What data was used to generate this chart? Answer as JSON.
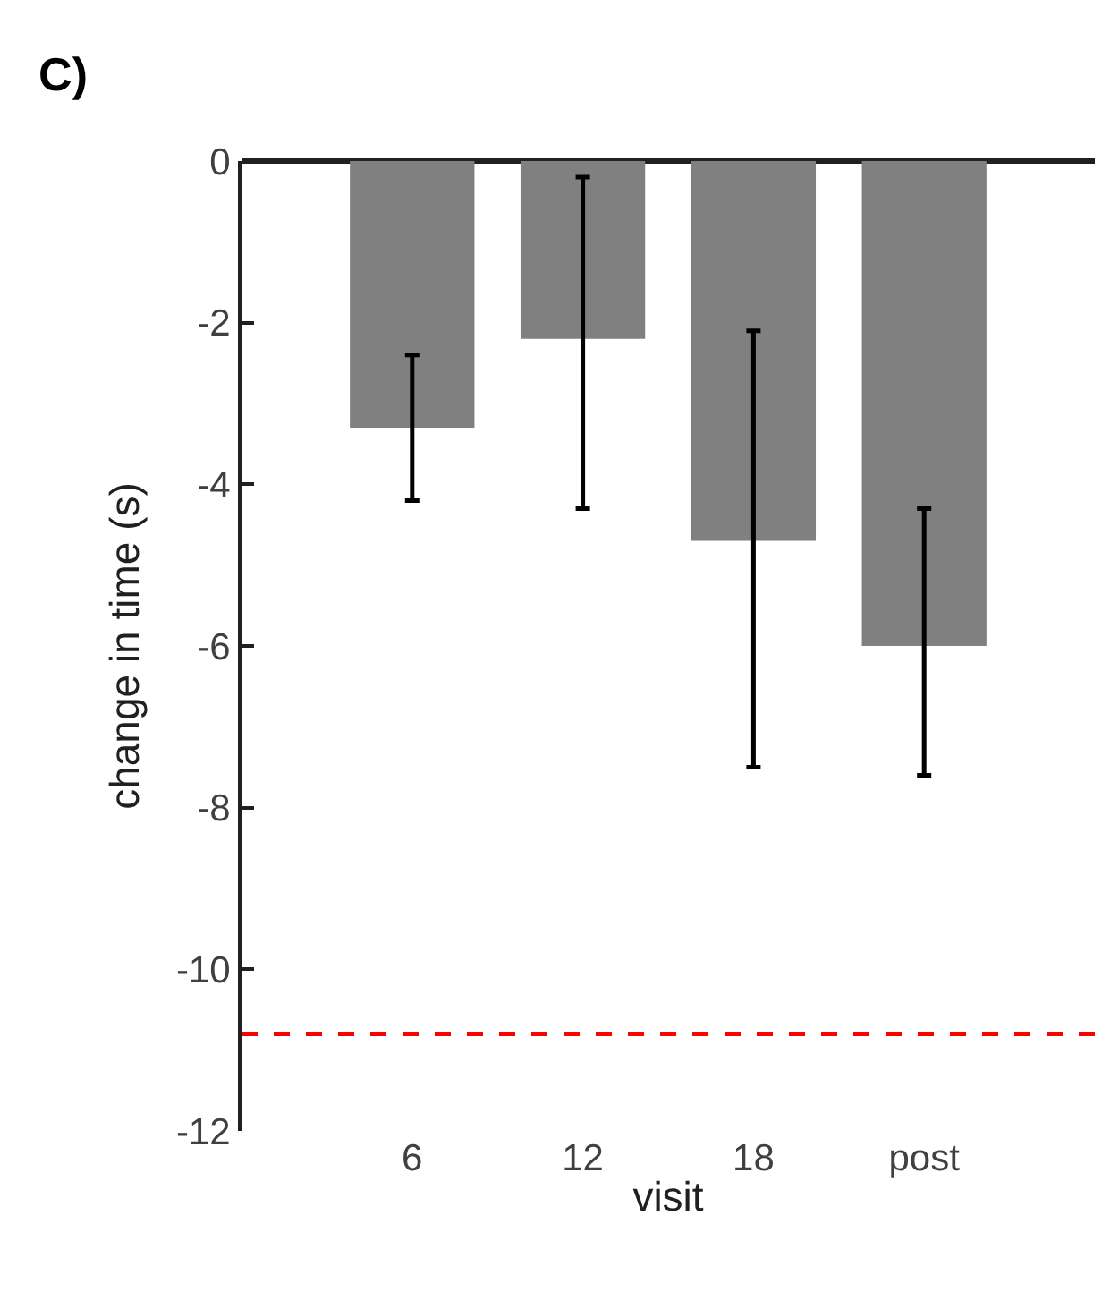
{
  "chart_data": {
    "type": "bar",
    "title": "C)",
    "xlabel": "visit",
    "ylabel": "change in time (s)",
    "categories": [
      "6",
      "12",
      "18",
      "post"
    ],
    "values": [
      -3.3,
      -2.2,
      -4.7,
      -6.0
    ],
    "errors": [
      [
        -4.2,
        -2.4
      ],
      [
        -4.3,
        -0.2
      ],
      [
        -7.5,
        -2.1
      ],
      [
        -7.6,
        -4.3
      ]
    ],
    "color": "#808080",
    "ylim": [
      -12,
      0
    ],
    "yticks": [
      -12,
      -10,
      -8,
      -6,
      -4,
      -2,
      0
    ],
    "ref_lines": [
      {
        "axis": "y",
        "value": -10.8,
        "color": "#ff0000",
        "line_style": "dashed"
      }
    ]
  }
}
